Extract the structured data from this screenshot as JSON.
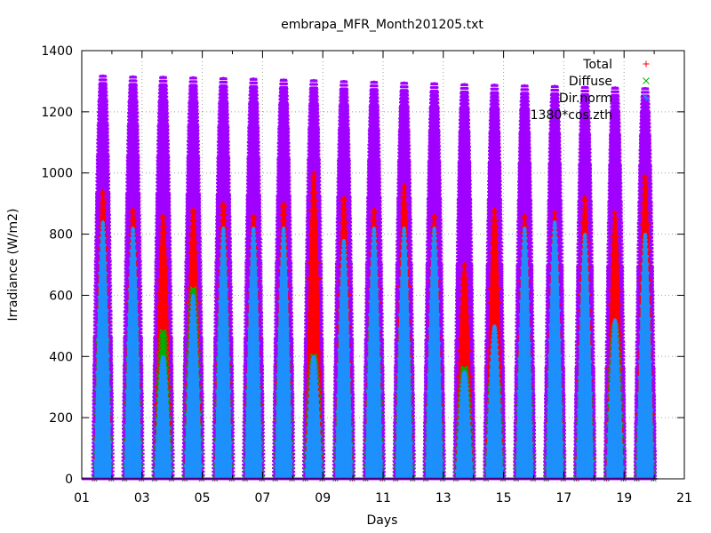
{
  "chart_data": {
    "type": "scatter",
    "title": "embrapa_MFR_Month201205.txt",
    "xlabel": "Days",
    "ylabel": "Irradiance (W/m2)",
    "xlim": [
      1,
      21
    ],
    "ylim": [
      0,
      1400
    ],
    "x_ticks": [
      "01",
      "03",
      "05",
      "07",
      "09",
      "11",
      "13",
      "15",
      "17",
      "19",
      "21"
    ],
    "y_ticks": [
      "0",
      "200",
      "400",
      "600",
      "800",
      "1000",
      "1200",
      "1400"
    ],
    "grid": true,
    "legend_position": "top-right",
    "series": [
      {
        "name": "Total",
        "color": "#ff0000",
        "marker": "+",
        "daily_peak_x": [
          1.7,
          2.7,
          3.7,
          4.7,
          5.7,
          6.7,
          7.7,
          8.7,
          9.7,
          10.7,
          11.7,
          12.7,
          13.7,
          14.7,
          15.7,
          16.7,
          17.7,
          18.7,
          19.7
        ],
        "daily_peak_y": [
          940,
          880,
          860,
          880,
          900,
          860,
          900,
          1000,
          920,
          880,
          960,
          860,
          700,
          880,
          860,
          870,
          920,
          870,
          990
        ]
      },
      {
        "name": "Diffuse",
        "color": "#00b000",
        "marker": "x",
        "daily_peak_x": [
          1.7,
          2.7,
          3.7,
          4.7,
          5.7,
          6.7,
          7.7,
          8.7,
          9.7,
          10.7,
          11.7,
          12.7,
          13.7,
          14.7,
          15.7,
          16.7,
          17.7,
          18.7,
          19.7
        ],
        "daily_peak_y": [
          620,
          600,
          480,
          620,
          600,
          460,
          560,
          400,
          400,
          600,
          560,
          450,
          360,
          400,
          520,
          500,
          460,
          500,
          360
        ]
      },
      {
        "name": "Dir.norm",
        "color": "#1e90ff",
        "marker": "*",
        "daily_peak_x": [
          1.7,
          2.7,
          3.7,
          4.7,
          5.7,
          6.7,
          7.7,
          8.7,
          9.7,
          10.7,
          11.7,
          12.7,
          13.7,
          14.7,
          15.7,
          16.7,
          17.7,
          18.7,
          19.7
        ],
        "daily_peak_y": [
          840,
          820,
          400,
          600,
          820,
          820,
          820,
          400,
          780,
          820,
          820,
          820,
          350,
          500,
          820,
          840,
          800,
          520,
          800
        ]
      },
      {
        "name": "1380*cos.zth",
        "color": "#a000ff",
        "marker": "-",
        "daily_peak_x": [
          1.7,
          2.7,
          3.7,
          4.7,
          5.7,
          6.7,
          7.7,
          8.7,
          9.7,
          10.7,
          11.7,
          12.7,
          13.7,
          14.7,
          15.7,
          16.7,
          17.7,
          18.7,
          19.7
        ],
        "daily_peak_y": [
          1318,
          1315,
          1314,
          1312,
          1310,
          1308,
          1305,
          1303,
          1300,
          1298,
          1295,
          1293,
          1290,
          1288,
          1286,
          1284,
          1281,
          1279,
          1277
        ]
      }
    ]
  }
}
